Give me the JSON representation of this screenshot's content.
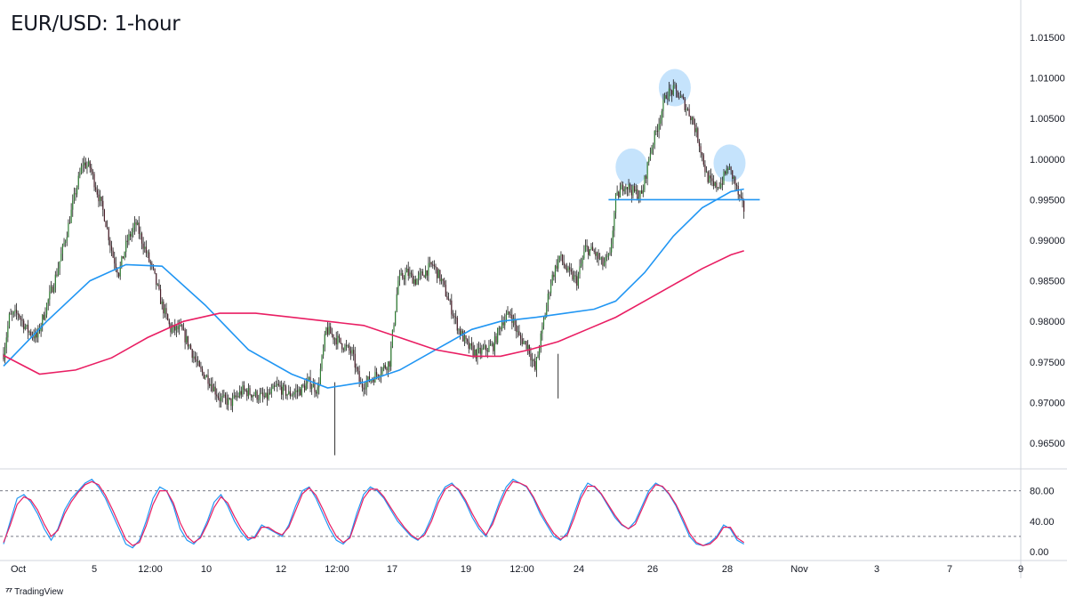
{
  "title": "EUR/USD: 1-hour",
  "brand": {
    "icon": "tradingview-logo-icon",
    "label": "TradingView"
  },
  "colors": {
    "background": "#ffffff",
    "grid": "#e6e8ee",
    "up_candle": "#2e7d32",
    "down_candle": "#4a1f2a",
    "sma_fast": "#2196f3",
    "sma_slow": "#e91e63",
    "support_line": "#2196f3",
    "pattern_circle_fill": "#bbdefb",
    "stoch_k": "#2196f3",
    "stoch_d": "#e91e63",
    "axis_text": "#131722"
  },
  "chart_data": [
    {
      "type": "candlestick",
      "title": "EUR/USD: 1-hour",
      "y_ticks": [
        "1.01500",
        "1.01000",
        "1.00500",
        "1.00000",
        "0.99500",
        "0.99000",
        "0.98500",
        "0.98000",
        "0.97500",
        "0.97000",
        "0.96500"
      ],
      "ylim": [
        0.9625,
        1.0175
      ],
      "x_ticks": [
        "Oct",
        "5",
        "12:00",
        "10",
        "12",
        "12:00",
        "17",
        "19",
        "12:00",
        "24",
        "26",
        "28",
        "Nov",
        "3",
        "7",
        "9"
      ],
      "price_path": {
        "time_range": [
          "Sep 30",
          "Oct 28"
        ],
        "points": [
          [
            0,
            0.976
          ],
          [
            4,
            0.9805
          ],
          [
            10,
            0.981
          ],
          [
            16,
            0.979
          ],
          [
            23,
            0.978
          ],
          [
            30,
            0.982
          ],
          [
            37,
            0.986
          ],
          [
            44,
            0.991
          ],
          [
            50,
            0.996
          ],
          [
            55,
            0.9995
          ],
          [
            60,
            0.999
          ],
          [
            65,
            0.996
          ],
          [
            70,
            0.993
          ],
          [
            76,
            0.988
          ],
          [
            80,
            0.986
          ],
          [
            86,
            0.99
          ],
          [
            92,
            0.992
          ],
          [
            98,
            0.989
          ],
          [
            104,
            0.986
          ],
          [
            110,
            0.982
          ],
          [
            116,
            0.979
          ],
          [
            123,
            0.979
          ],
          [
            129,
            0.977
          ],
          [
            136,
            0.974
          ],
          [
            142,
            0.973
          ],
          [
            150,
            0.9705
          ],
          [
            158,
            0.97
          ],
          [
            166,
            0.9715
          ],
          [
            174,
            0.971
          ],
          [
            182,
            0.9705
          ],
          [
            190,
            0.972
          ],
          [
            198,
            0.971
          ],
          [
            206,
            0.9715
          ],
          [
            212,
            0.9725
          ],
          [
            218,
            0.9715
          ],
          [
            224,
            0.979
          ],
          [
            230,
            0.978
          ],
          [
            236,
            0.977
          ],
          [
            242,
            0.976
          ],
          [
            248,
            0.972
          ],
          [
            256,
            0.973
          ],
          [
            262,
            0.974
          ],
          [
            268,
            0.975
          ],
          [
            274,
            0.985
          ],
          [
            280,
            0.986
          ],
          [
            286,
            0.985
          ],
          [
            292,
            0.986
          ],
          [
            298,
            0.987
          ],
          [
            304,
            0.985
          ],
          [
            310,
            0.982
          ],
          [
            316,
            0.979
          ],
          [
            322,
            0.977
          ],
          [
            328,
            0.976
          ],
          [
            334,
            0.9765
          ],
          [
            340,
            0.977
          ],
          [
            346,
            0.98
          ],
          [
            352,
            0.981
          ],
          [
            358,
            0.978
          ],
          [
            364,
            0.977
          ],
          [
            369,
            0.974
          ],
          [
            374,
            0.979
          ],
          [
            380,
            0.985
          ],
          [
            386,
            0.988
          ],
          [
            392,
            0.986
          ],
          [
            398,
            0.985
          ],
          [
            404,
            0.989
          ],
          [
            410,
            0.9885
          ],
          [
            416,
            0.987
          ],
          [
            421,
            0.988
          ],
          [
            425,
            0.995
          ],
          [
            431,
            0.997
          ],
          [
            437,
            0.996
          ],
          [
            443,
            0.9955
          ],
          [
            449,
            1.001
          ],
          [
            454,
            1.004
          ],
          [
            460,
            1.008
          ],
          [
            466,
            1.0085
          ],
          [
            472,
            1.007
          ],
          [
            478,
            1.005
          ],
          [
            483,
            1.002
          ],
          [
            488,
            0.998
          ],
          [
            493,
            0.9965
          ],
          [
            498,
            0.997
          ],
          [
            503,
            0.999
          ],
          [
            507,
            0.9975
          ],
          [
            511,
            0.995
          ],
          [
            514,
            0.9938
          ]
        ]
      },
      "indicators": [
        {
          "name": "",
          "color": "#2196f3",
          "points": [
            [
              0,
              0.9745
            ],
            [
              30,
              0.98
            ],
            [
              60,
              0.985
            ],
            [
              85,
              0.987
            ],
            [
              110,
              0.9868
            ],
            [
              140,
              0.982
            ],
            [
              170,
              0.9765
            ],
            [
              200,
              0.9735
            ],
            [
              225,
              0.9718
            ],
            [
              250,
              0.9725
            ],
            [
              275,
              0.974
            ],
            [
              300,
              0.9765
            ],
            [
              325,
              0.979
            ],
            [
              345,
              0.98
            ],
            [
              370,
              0.9805
            ],
            [
              390,
              0.981
            ],
            [
              410,
              0.9815
            ],
            [
              425,
              0.9825
            ],
            [
              445,
              0.986
            ],
            [
              465,
              0.9905
            ],
            [
              485,
              0.994
            ],
            [
              505,
              0.996
            ],
            [
              514,
              0.9963
            ]
          ]
        },
        {
          "name": "",
          "color": "#e91e63",
          "points": [
            [
              0,
              0.9758
            ],
            [
              25,
              0.9735
            ],
            [
              50,
              0.974
            ],
            [
              75,
              0.9755
            ],
            [
              100,
              0.978
            ],
            [
              125,
              0.98
            ],
            [
              150,
              0.981
            ],
            [
              175,
              0.981
            ],
            [
              200,
              0.9805
            ],
            [
              225,
              0.98
            ],
            [
              250,
              0.9795
            ],
            [
              275,
              0.978
            ],
            [
              300,
              0.9765
            ],
            [
              325,
              0.9757
            ],
            [
              345,
              0.9757
            ],
            [
              365,
              0.9765
            ],
            [
              385,
              0.9775
            ],
            [
              405,
              0.979
            ],
            [
              425,
              0.9805
            ],
            [
              445,
              0.9825
            ],
            [
              465,
              0.9845
            ],
            [
              485,
              0.9865
            ],
            [
              505,
              0.9882
            ],
            [
              514,
              0.9887
            ]
          ]
        }
      ],
      "annotations": {
        "support_level": 0.995,
        "support_span": [
          420,
          525
        ],
        "head_and_shoulders": [
          {
            "label": "",
            "x": 436,
            "y": 0.999
          },
          {
            "label": "",
            "x": 466,
            "y": 1.0088
          },
          {
            "label": "",
            "x": 504,
            "y": 0.9995
          }
        ]
      }
    },
    {
      "type": "line",
      "title": "",
      "y_ticks": [
        "80.00",
        "40.00",
        "0.00"
      ],
      "ylim": [
        -5,
        100
      ],
      "levels": [
        80,
        20
      ],
      "series": [
        {
          "name": "",
          "color": "#2196f3",
          "values": [
            10,
            40,
            70,
            75,
            65,
            50,
            30,
            15,
            30,
            55,
            70,
            80,
            90,
            95,
            85,
            70,
            50,
            30,
            10,
            5,
            15,
            40,
            70,
            85,
            80,
            60,
            30,
            15,
            10,
            20,
            40,
            65,
            75,
            60,
            40,
            25,
            15,
            20,
            35,
            30,
            25,
            20,
            35,
            60,
            80,
            85,
            70,
            50,
            30,
            15,
            10,
            20,
            50,
            75,
            85,
            80,
            70,
            55,
            40,
            30,
            20,
            15,
            25,
            45,
            70,
            85,
            90,
            80,
            65,
            45,
            30,
            20,
            40,
            65,
            85,
            95,
            90,
            85,
            70,
            50,
            35,
            20,
            15,
            25,
            50,
            75,
            90,
            85,
            75,
            60,
            45,
            35,
            30,
            40,
            60,
            80,
            90,
            85,
            75,
            60,
            40,
            20,
            10,
            8,
            12,
            20,
            35,
            30,
            15,
            10
          ]
        },
        {
          "name": "",
          "color": "#e91e63",
          "values": [
            12,
            35,
            62,
            72,
            68,
            55,
            36,
            20,
            28,
            50,
            66,
            78,
            88,
            92,
            88,
            74,
            56,
            36,
            16,
            8,
            12,
            34,
            62,
            80,
            80,
            64,
            38,
            20,
            12,
            18,
            36,
            58,
            72,
            64,
            46,
            30,
            18,
            18,
            32,
            32,
            26,
            22,
            32,
            54,
            76,
            84,
            74,
            56,
            36,
            20,
            12,
            18,
            44,
            70,
            82,
            82,
            72,
            58,
            44,
            32,
            22,
            16,
            22,
            40,
            64,
            82,
            88,
            82,
            68,
            50,
            34,
            22,
            36,
            60,
            80,
            92,
            90,
            86,
            72,
            54,
            38,
            24,
            16,
            22,
            44,
            70,
            86,
            86,
            76,
            62,
            48,
            36,
            30,
            36,
            56,
            76,
            88,
            86,
            76,
            62,
            44,
            24,
            12,
            8,
            10,
            18,
            32,
            32,
            18,
            12
          ]
        }
      ]
    }
  ]
}
